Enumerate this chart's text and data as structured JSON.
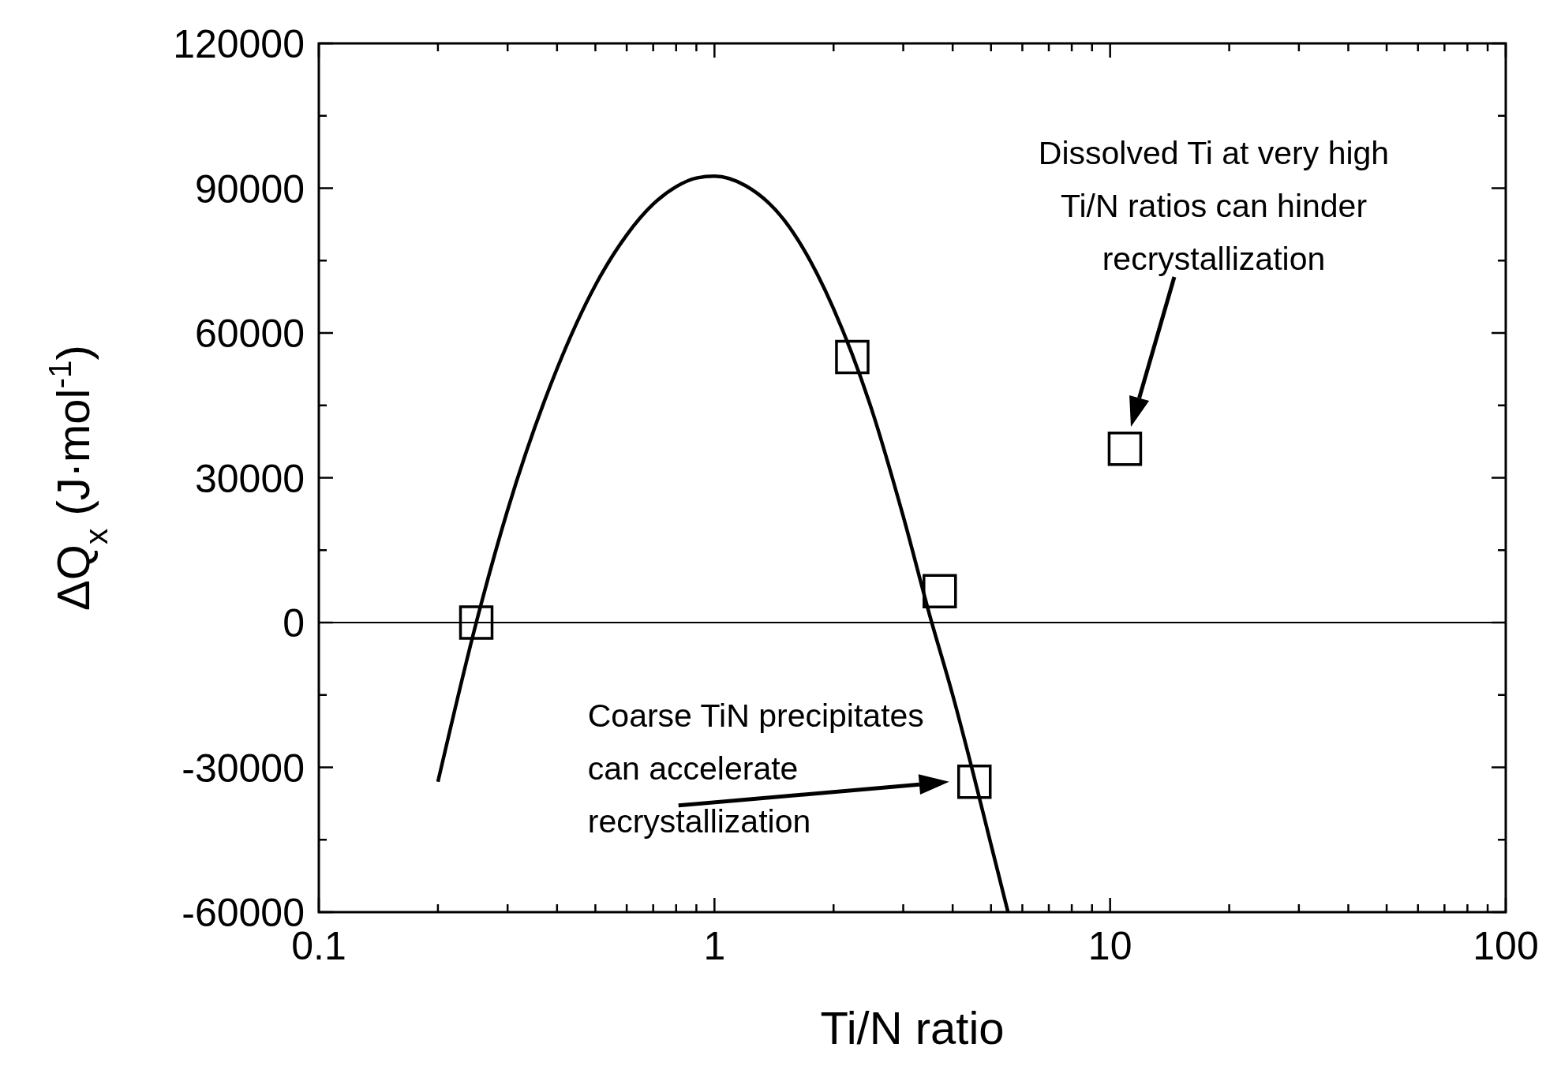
{
  "chart_data": {
    "type": "scatter",
    "xlabel": "Ti/N ratio",
    "ylabel": "ΔQ$_{x}$ (J·mol$^{-1}$)",
    "log": "x",
    "grid": false,
    "xlim": [
      0.1,
      100
    ],
    "xticks": [
      0.1,
      1,
      10,
      100,
      {
        "value": 0.2,
        "label": null
      },
      {
        "value": 0.3,
        "label": null
      },
      {
        "value": 0.4,
        "label": null
      },
      {
        "value": 0.5,
        "label": null
      },
      {
        "value": 0.6,
        "label": null
      },
      {
        "value": 0.7,
        "label": null
      },
      {
        "value": 0.8,
        "label": null
      },
      {
        "value": 0.9,
        "label": null
      },
      {
        "value": 2,
        "label": null
      },
      {
        "value": 3,
        "label": null
      },
      {
        "value": 4,
        "label": null
      },
      {
        "value": 5,
        "label": null
      },
      {
        "value": 6,
        "label": null
      },
      {
        "value": 7,
        "label": null
      },
      {
        "value": 8,
        "label": null
      },
      {
        "value": 9,
        "label": null
      },
      {
        "value": 20,
        "label": null
      },
      {
        "value": 30,
        "label": null
      },
      {
        "value": 40,
        "label": null
      },
      {
        "value": 50,
        "label": null
      },
      {
        "value": 60,
        "label": null
      },
      {
        "value": 70,
        "label": null
      },
      {
        "value": 80,
        "label": null
      },
      {
        "value": 90,
        "label": null
      }
    ],
    "ylim": [
      -60000,
      120000
    ],
    "yticks": [
      -60000,
      -30000,
      0,
      30000,
      60000,
      90000,
      120000,
      {
        "value": -45000,
        "label": null
      },
      {
        "value": -15000,
        "label": null
      },
      {
        "value": 15000,
        "label": null
      },
      {
        "value": 45000,
        "label": null
      },
      {
        "value": 75000,
        "label": null
      },
      {
        "value": 105000,
        "label": null
      }
    ],
    "ref_lines": [
      {
        "axis": "y",
        "value": 0,
        "color": "#000000"
      }
    ],
    "series": [
      {
        "marker": "square",
        "color": "#000000",
        "x": [
          0.25,
          2.23,
          3.71,
          4.54,
          10.9
        ],
        "values": [
          0,
          55000,
          6500,
          -33000,
          36000
        ]
      },
      {
        "type": "line",
        "color": "#000000",
        "line_style": "solid",
        "marker": "none",
        "x": [
          0.2,
          0.25,
          0.3,
          0.4,
          0.5,
          0.6,
          0.7,
          0.8,
          0.9,
          1.0,
          1.2,
          1.5,
          2.0,
          2.5,
          3.0,
          3.5,
          4.0,
          4.5,
          5.0,
          5.52
        ],
        "values": [
          -33000,
          0,
          23300,
          52600,
          69900,
          80300,
          86700,
          90300,
          92100,
          92500,
          90500,
          83400,
          65000,
          44000,
          22000,
          1500,
          -15000,
          -31000,
          -46000,
          -60000
        ]
      }
    ],
    "annotations": [
      {
        "text": "Coarse TiN precipitates\ncan accelerate\nrecrystallization",
        "x": 4.54,
        "y": -33000
      },
      "Dissolved Ti at very high\nTi/N ratios can hinder\nrecrystallization"
    ]
  }
}
